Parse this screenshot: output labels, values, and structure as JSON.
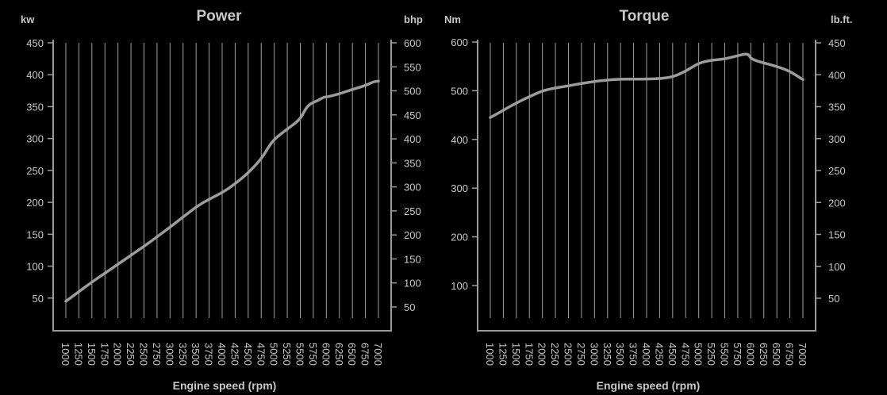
{
  "colors": {
    "background": "#000000",
    "text": "#c8c8c8",
    "axis": "#9a9a9a",
    "grid": "#a0a0a0",
    "line": "#9c9c9c"
  },
  "chart_data": [
    {
      "type": "line",
      "title": "Power",
      "xlabel": "Engine speed (rpm)",
      "x_ticks": [
        1000,
        1250,
        1500,
        1750,
        2000,
        2250,
        2500,
        2750,
        3000,
        3250,
        3500,
        3750,
        4000,
        4250,
        4500,
        4750,
        5000,
        5250,
        5500,
        5750,
        6000,
        6250,
        6500,
        6750,
        7000
      ],
      "xlim": [
        1000,
        7000
      ],
      "y_left": {
        "unit": "kw",
        "ticks": [
          50,
          100,
          150,
          200,
          250,
          300,
          350,
          400,
          450
        ],
        "range": [
          0,
          450
        ]
      },
      "y_right": {
        "unit": "bhp",
        "ticks": [
          50,
          100,
          150,
          200,
          250,
          300,
          350,
          400,
          450,
          500,
          550,
          600
        ]
      },
      "grid": "vertical",
      "series": [
        {
          "x": [
            1000,
            1250,
            1500,
            1750,
            2000,
            2250,
            2500,
            2750,
            3000,
            3250,
            3500,
            3750,
            4000,
            4250,
            4500,
            4750,
            4900,
            5000,
            5250,
            5500,
            5600,
            5700,
            5850,
            5950,
            6000,
            6250,
            6500,
            6750,
            6900,
            7000
          ],
          "y": [
            45,
            60,
            75,
            89,
            103,
            117,
            131,
            146,
            161,
            177,
            193,
            205,
            215,
            229,
            246,
            268,
            288,
            299,
            315,
            330,
            347,
            355,
            360,
            365,
            365,
            370,
            377,
            383,
            389,
            390
          ]
        }
      ]
    },
    {
      "type": "line",
      "title": "Torque",
      "xlabel": "Engine speed (rpm)",
      "x_ticks": [
        1000,
        1250,
        1500,
        1750,
        2000,
        2250,
        2500,
        2750,
        3000,
        3250,
        3500,
        3750,
        4000,
        4250,
        4500,
        4750,
        5000,
        5250,
        5500,
        5750,
        6000,
        6250,
        6500,
        6750,
        7000
      ],
      "xlim": [
        1000,
        7000
      ],
      "y_left": {
        "unit": "Nm",
        "ticks": [
          100,
          200,
          300,
          400,
          500,
          600
        ],
        "range": [
          0,
          600
        ]
      },
      "y_right": {
        "unit": "lb.ft.",
        "ticks": [
          50,
          100,
          150,
          200,
          250,
          300,
          350,
          400,
          450
        ]
      },
      "grid": "vertical",
      "series": [
        {
          "x": [
            1000,
            1250,
            1500,
            1750,
            2000,
            2250,
            2500,
            2750,
            3000,
            3250,
            3500,
            3750,
            4000,
            4250,
            4500,
            4750,
            5000,
            5250,
            5500,
            5750,
            5950,
            6000,
            6250,
            6500,
            6750,
            7000
          ],
          "y": [
            445,
            460,
            475,
            488,
            500,
            506,
            510,
            515,
            519,
            522,
            524,
            524,
            524,
            525,
            528,
            540,
            557,
            563,
            565,
            572,
            577,
            565,
            557,
            550,
            540,
            523
          ]
        }
      ]
    }
  ]
}
